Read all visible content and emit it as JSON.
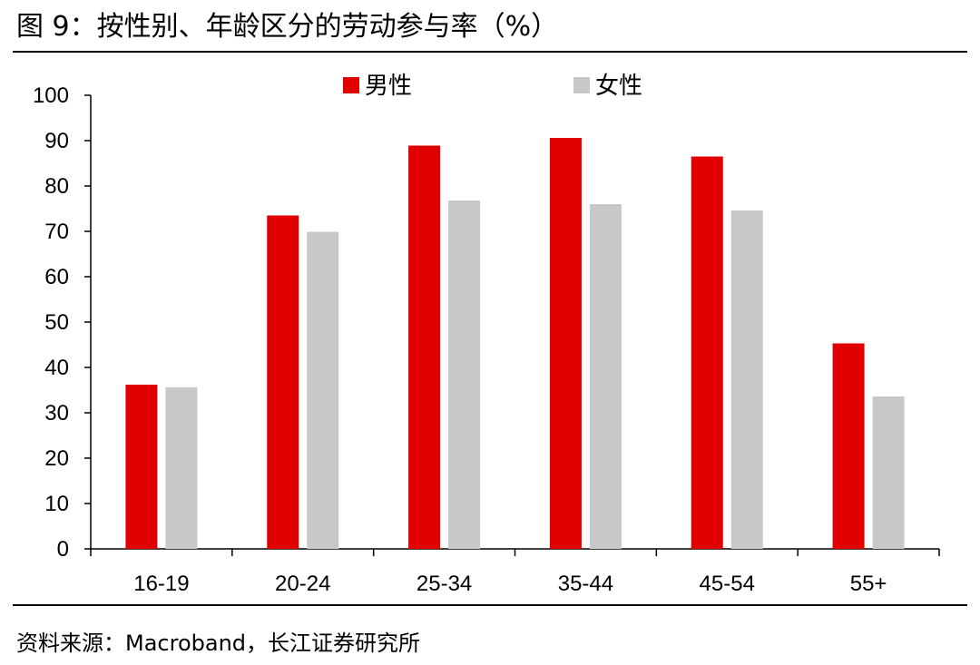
{
  "figure": {
    "title": "图 9：按性别、年龄区分的劳动参与率（%）",
    "source": "资料来源：Macroband，长江证券研究所"
  },
  "chart_data": {
    "type": "bar",
    "title": "",
    "xlabel": "",
    "ylabel": "",
    "categories": [
      "16-19",
      "20-24",
      "25-34",
      "35-44",
      "45-54",
      "55+"
    ],
    "series": [
      {
        "name": "男性",
        "color": "#e00000",
        "values": [
          36.2,
          73.5,
          88.9,
          90.6,
          86.5,
          45.3
        ]
      },
      {
        "name": "女性",
        "color": "#c8c8c8",
        "values": [
          35.6,
          69.9,
          76.8,
          76.0,
          74.6,
          33.6
        ]
      }
    ],
    "ylim": [
      0,
      100
    ],
    "yticks": [
      0,
      10,
      20,
      30,
      40,
      50,
      60,
      70,
      80,
      90,
      100
    ],
    "grid": false,
    "legend": "top-center"
  }
}
